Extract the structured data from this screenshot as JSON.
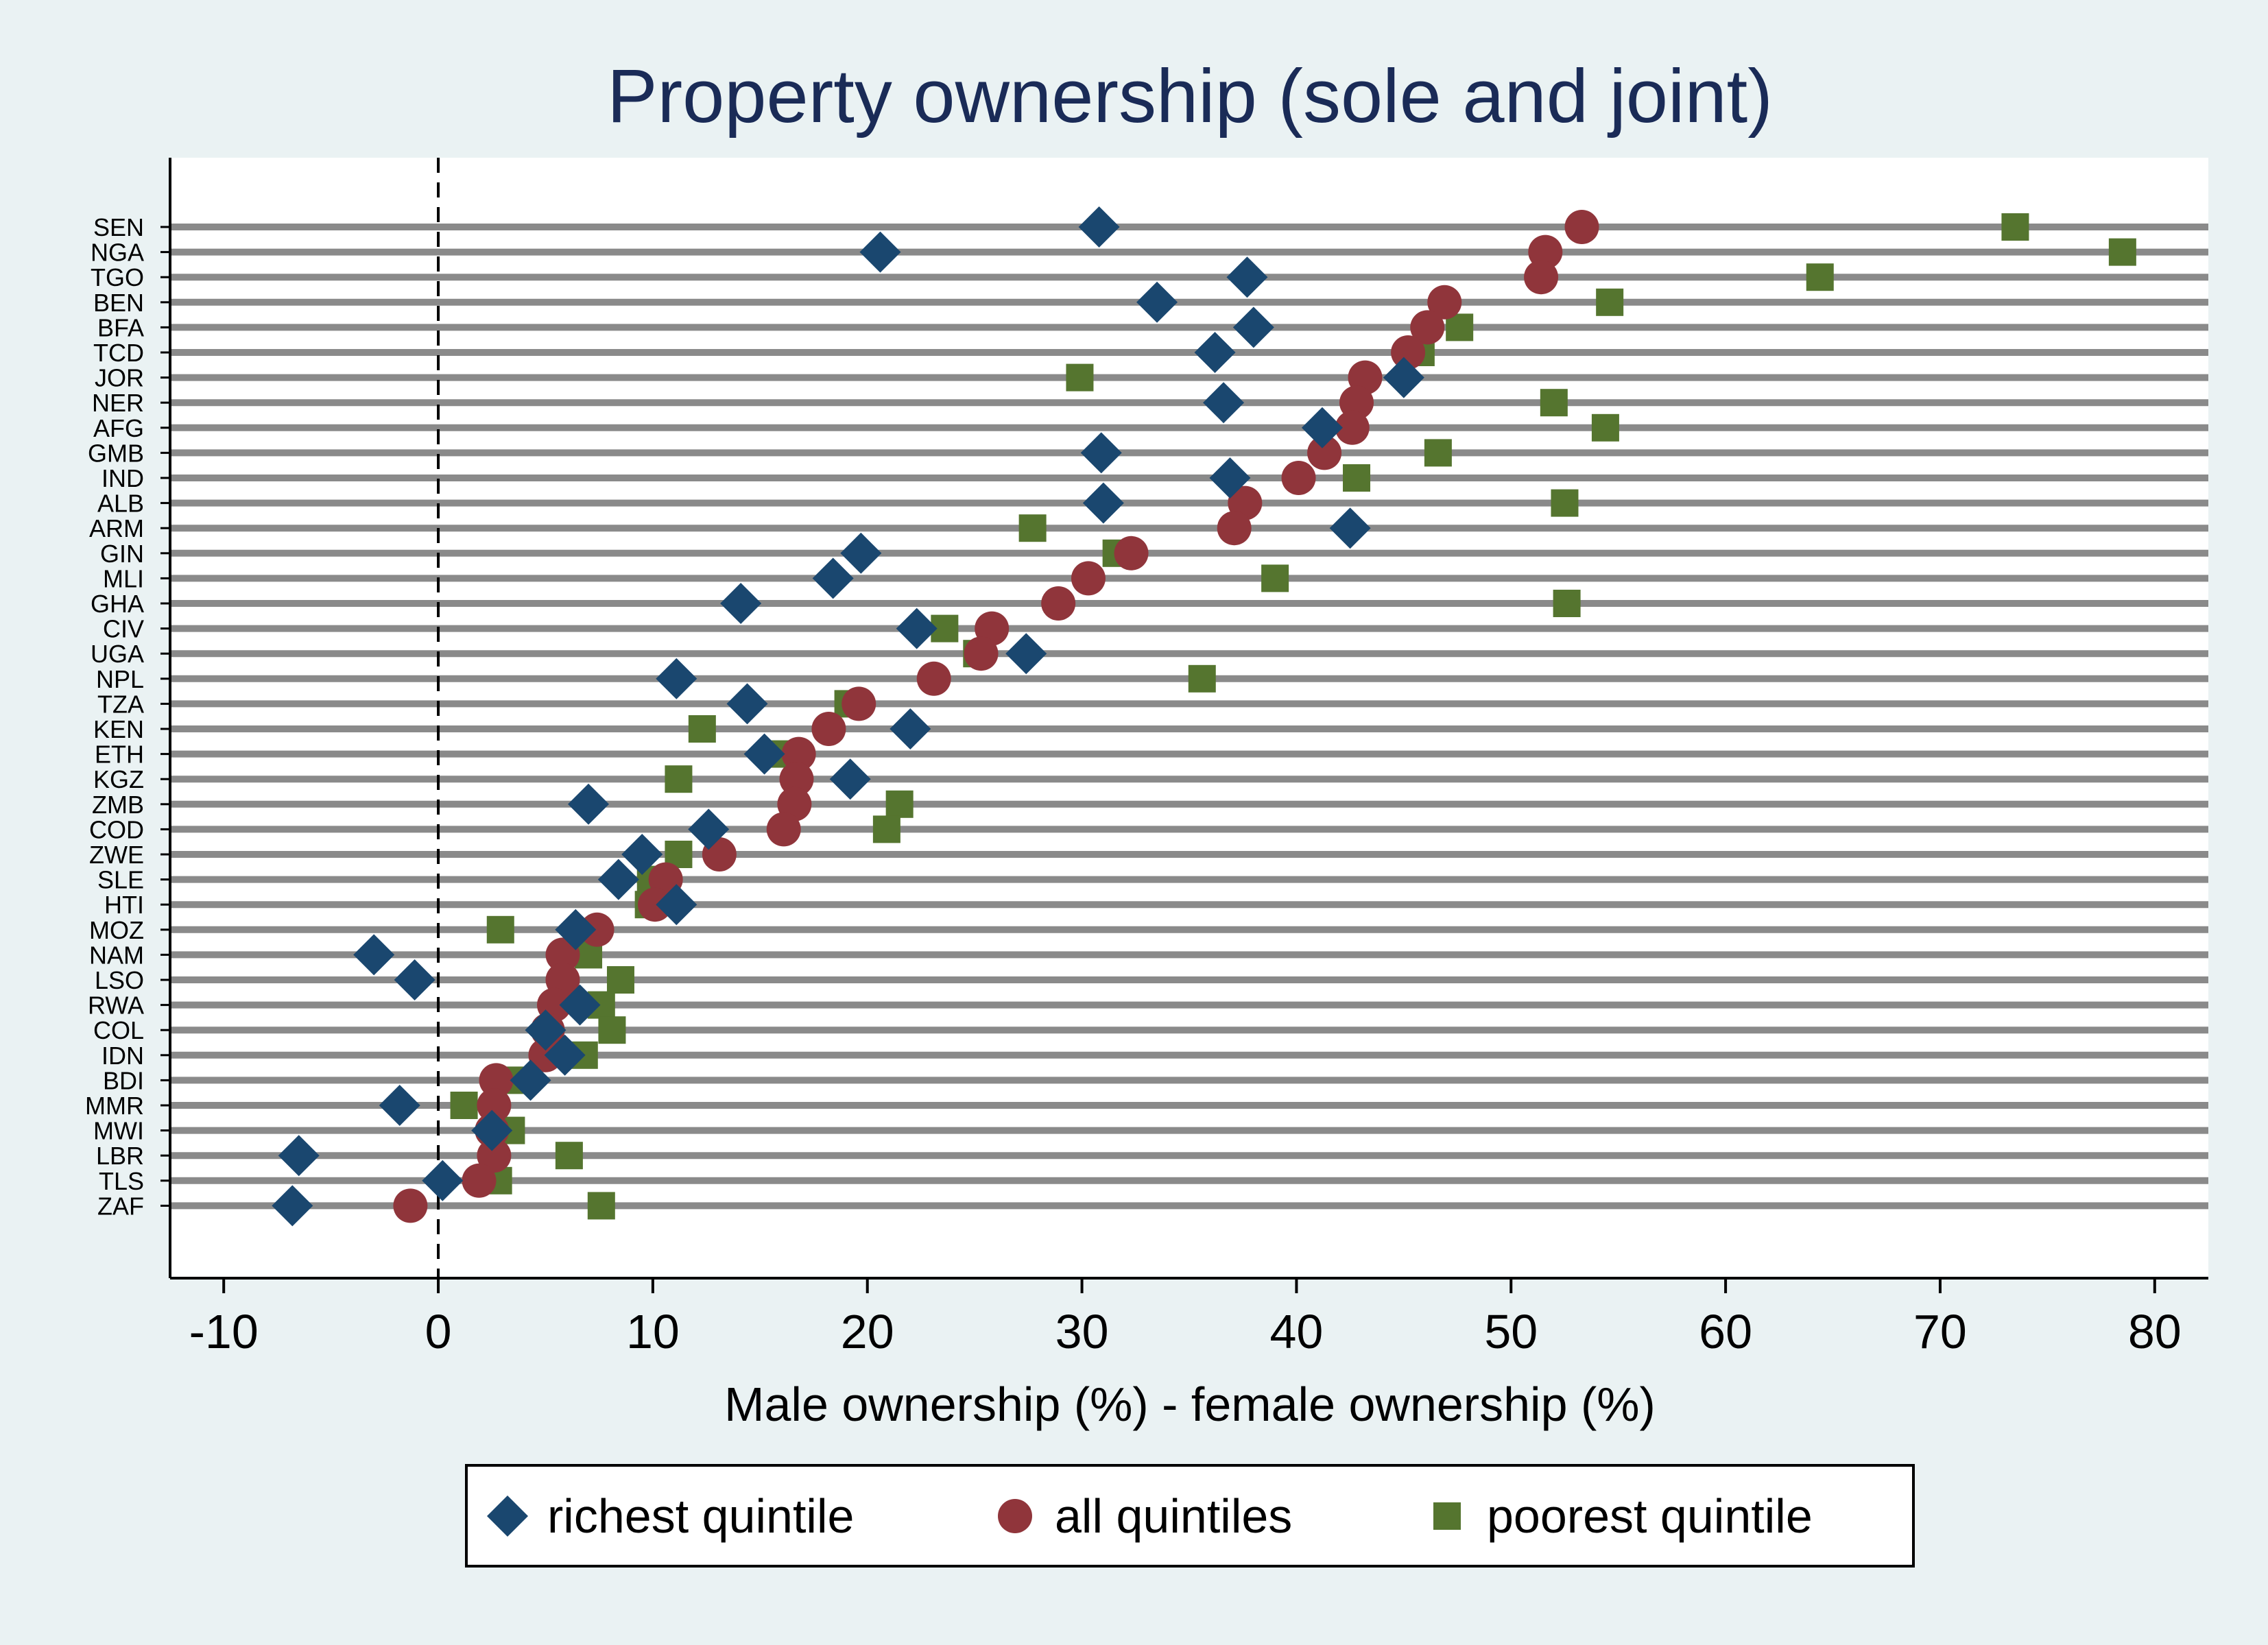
{
  "chart_data": {
    "type": "scatter",
    "title": "Property ownership (sole and joint)",
    "xlabel": "Male ownership (%) - female ownership (%)",
    "xlim": [
      -12.5,
      82.5
    ],
    "xticks": [
      "-10",
      "0",
      "10",
      "20",
      "30",
      "40",
      "50",
      "60",
      "70",
      "80"
    ],
    "reference_line": 0,
    "grid": "horizontal lines at each country",
    "legend_position": "bottom",
    "categories": [
      "SEN",
      "NGA",
      "TGO",
      "BEN",
      "BFA",
      "TCD",
      "JOR",
      "NER",
      "AFG",
      "GMB",
      "IND",
      "ALB",
      "ARM",
      "GIN",
      "MLI",
      "GHA",
      "CIV",
      "UGA",
      "NPL",
      "TZA",
      "KEN",
      "ETH",
      "KGZ",
      "ZMB",
      "COD",
      "ZWE",
      "SLE",
      "HTI",
      "MOZ",
      "NAM",
      "LSO",
      "RWA",
      "COL",
      "IDN",
      "BDI",
      "MMR",
      "MWI",
      "LBR",
      "TLS",
      "ZAF"
    ],
    "series": [
      {
        "name": "richest quintile",
        "marker": "diamond",
        "color": "#1a476f",
        "values": [
          30.8,
          20.6,
          37.7,
          33.5,
          38.0,
          36.2,
          45.0,
          36.6,
          41.2,
          30.9,
          36.9,
          31.0,
          42.5,
          19.7,
          18.4,
          14.1,
          22.3,
          27.4,
          11.1,
          14.4,
          22.0,
          15.2,
          19.2,
          7.0,
          12.6,
          9.5,
          8.4,
          11.1,
          6.4,
          -3.0,
          -1.1,
          6.6,
          5.0,
          5.9,
          4.3,
          -1.8,
          2.5,
          -6.5,
          0.2,
          -6.8
        ]
      },
      {
        "name": "all quintiles",
        "marker": "circle",
        "color": "#90353b",
        "values": [
          53.3,
          51.6,
          51.4,
          46.9,
          46.1,
          45.2,
          43.2,
          42.8,
          42.6,
          41.3,
          40.1,
          37.6,
          37.1,
          32.3,
          30.3,
          28.9,
          25.8,
          25.3,
          23.1,
          19.6,
          18.2,
          16.8,
          16.7,
          16.6,
          16.1,
          13.1,
          10.6,
          10.1,
          7.4,
          5.8,
          5.8,
          5.4,
          5.1,
          5.0,
          2.7,
          2.6,
          2.5,
          2.6,
          1.9,
          -1.3
        ]
      },
      {
        "name": "poorest quintile",
        "marker": "square",
        "color": "#55752f",
        "values": [
          73.5,
          78.5,
          64.4,
          54.6,
          47.6,
          45.8,
          29.9,
          52.0,
          54.4,
          46.6,
          42.8,
          52.5,
          27.7,
          31.6,
          39.0,
          52.6,
          23.6,
          25.1,
          35.6,
          19.1,
          12.3,
          15.8,
          11.2,
          21.5,
          20.9,
          11.2,
          9.9,
          9.8,
          2.9,
          7.0,
          8.5,
          7.6,
          8.1,
          6.8,
          3.7,
          1.2,
          3.4,
          6.1,
          2.8,
          7.6
        ]
      }
    ]
  }
}
